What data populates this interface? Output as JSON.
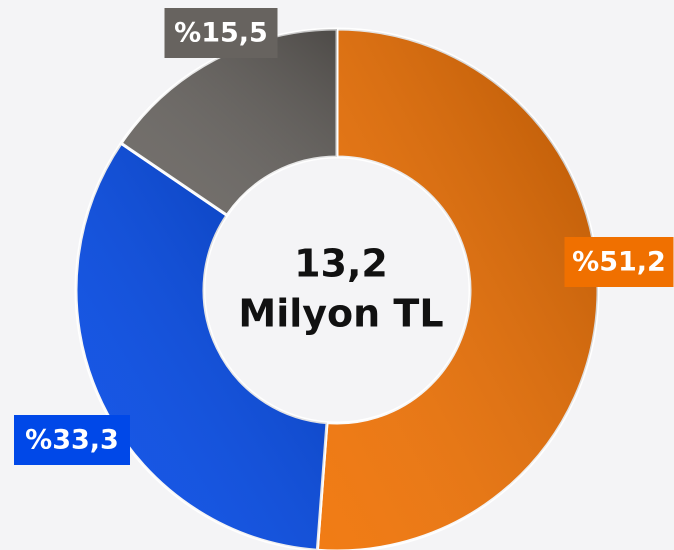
{
  "chart_data": {
    "type": "donut",
    "values": [
      51.2,
      33.3,
      15.5
    ],
    "value_labels": [
      "%51,2",
      "%33,3",
      "%15,5"
    ],
    "colors": [
      "#f07000",
      "#0048e8",
      "#67635f"
    ],
    "annotations": [
      "13,2",
      "Milyon TL"
    ]
  }
}
